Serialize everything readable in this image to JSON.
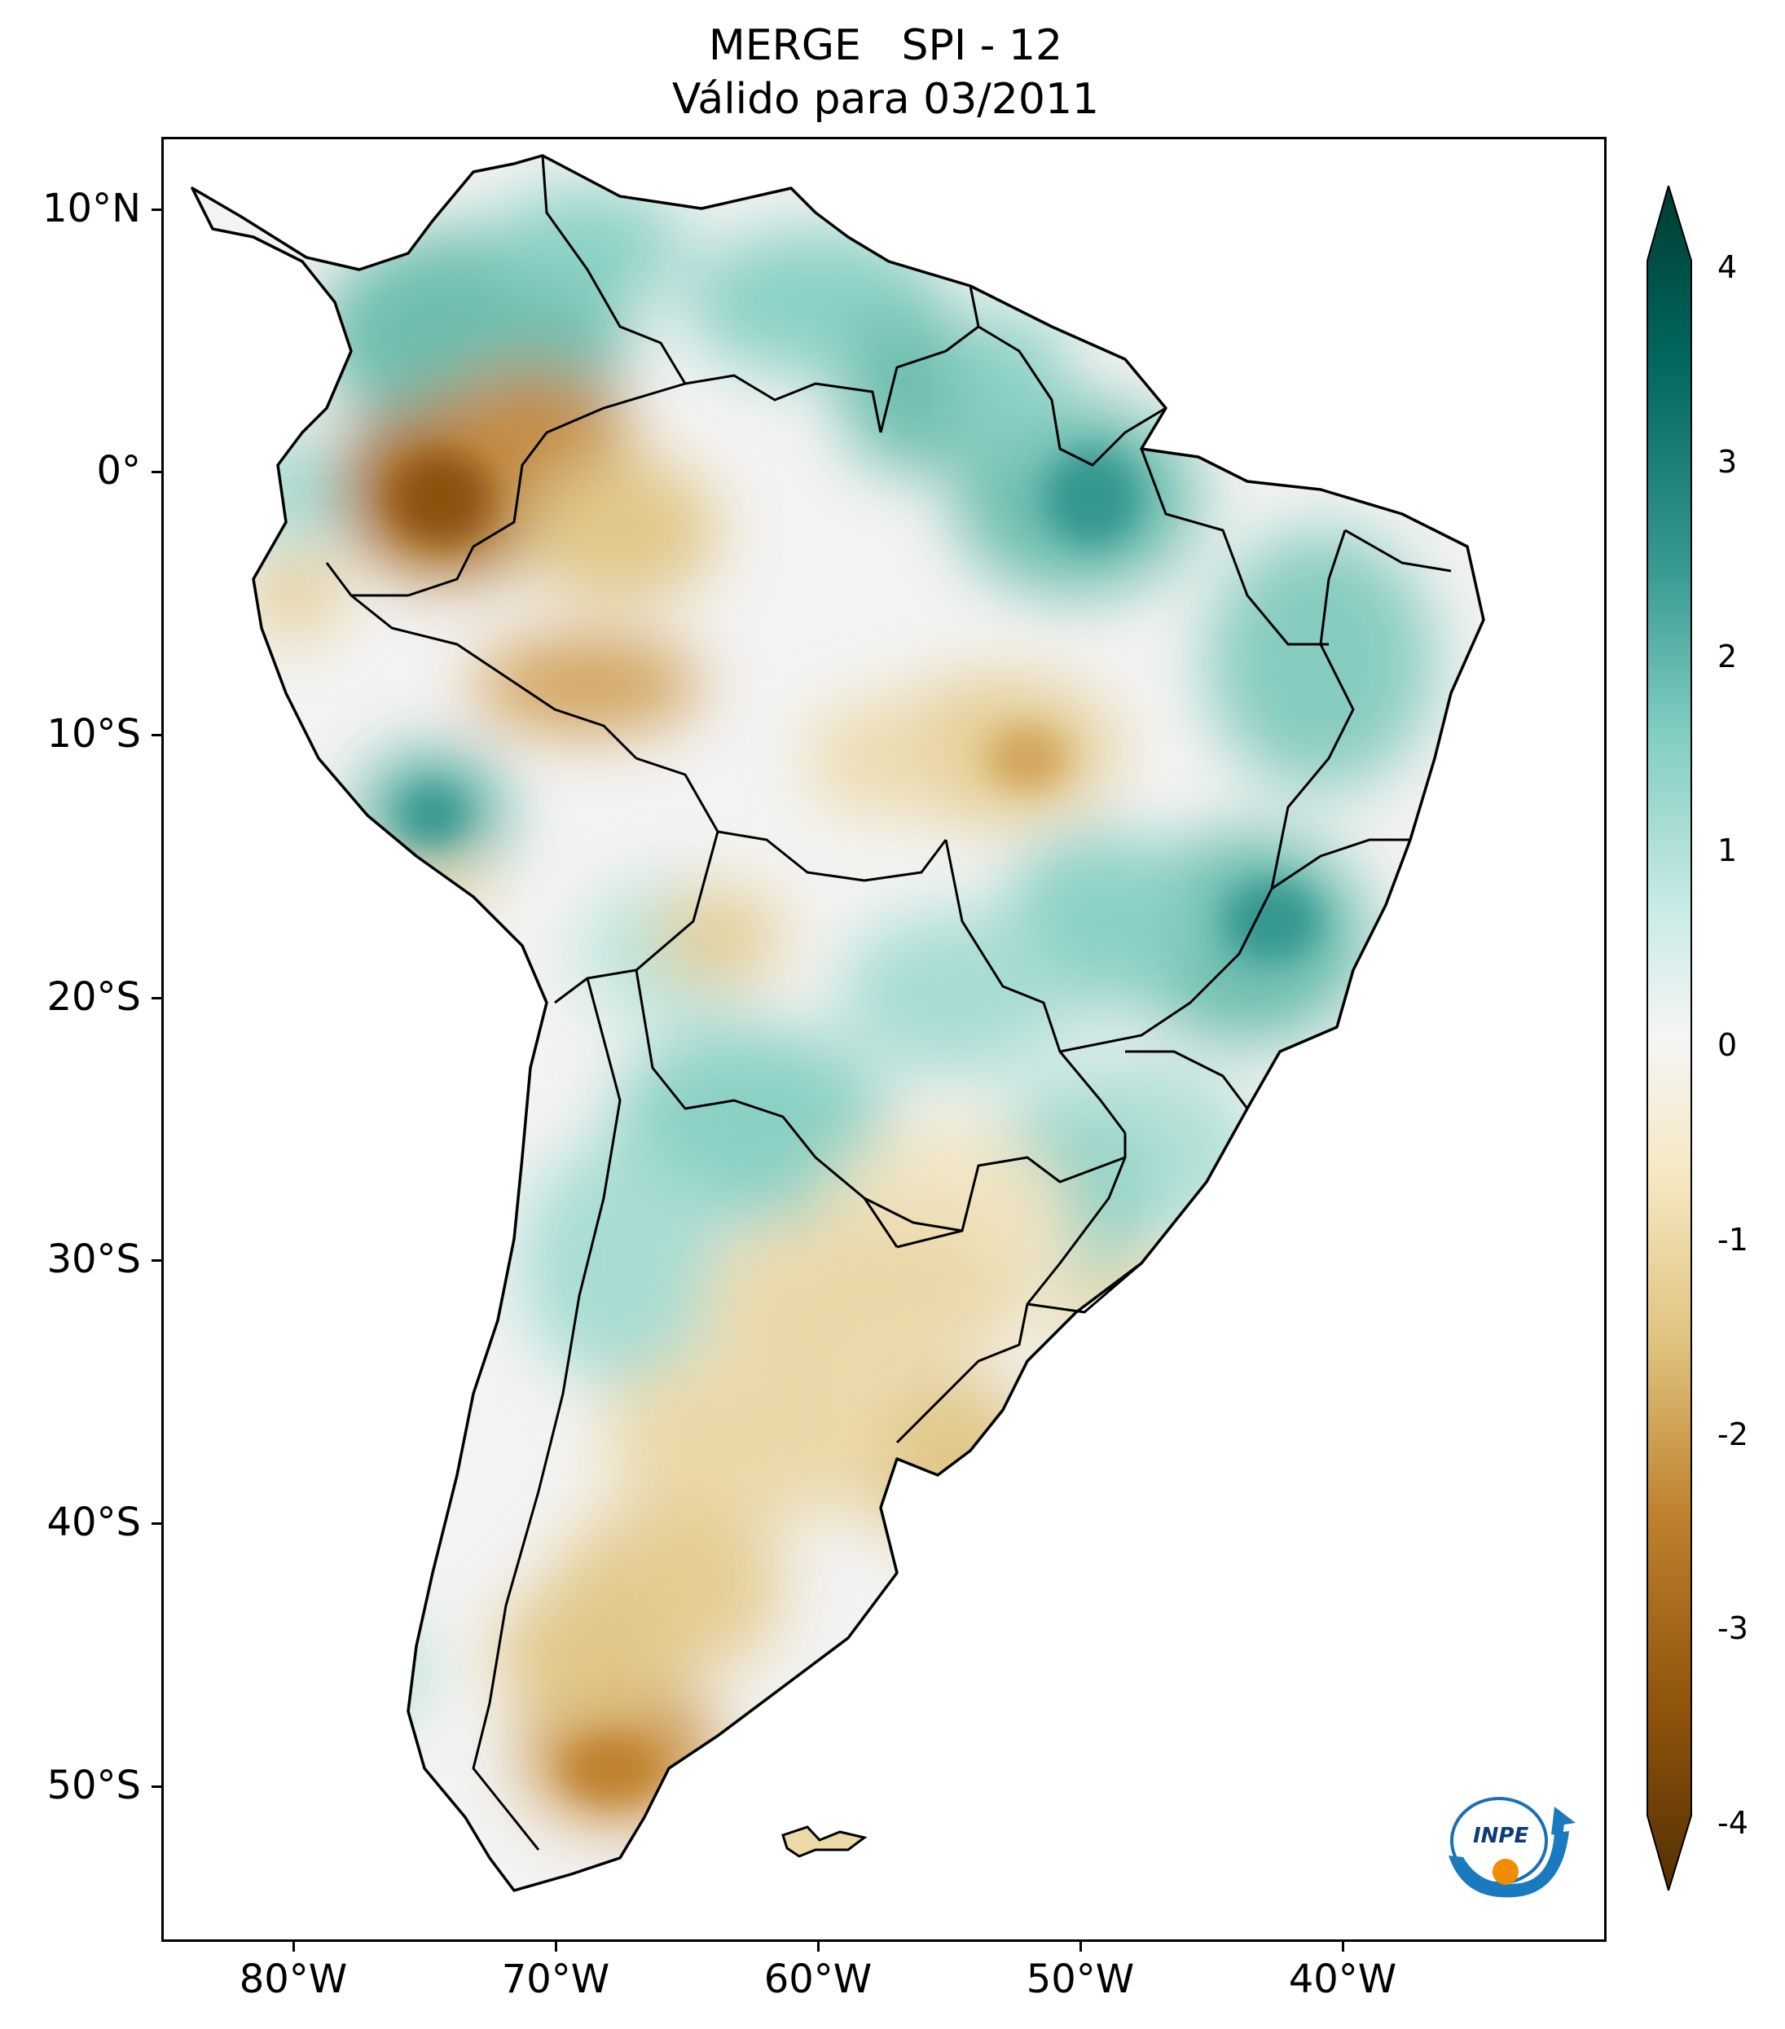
{
  "title": {
    "line1": "MERGE   SPI - 12",
    "line2": "Válido para 03/2011"
  },
  "map": {
    "region": "South America",
    "variable": "SPI - 12",
    "latitude_labels": [
      "10°N",
      "0°",
      "10°S",
      "20°S",
      "30°S",
      "40°S",
      "50°S"
    ],
    "longitude_labels": [
      "80°W",
      "70°W",
      "60°W",
      "50°W",
      "40°W"
    ],
    "lat_range": [
      -56,
      12.5
    ],
    "lon_range": [
      -85,
      -30
    ]
  },
  "colorbar": {
    "ticks": [
      "4",
      "3",
      "2",
      "1",
      "0",
      "-1",
      "-2",
      "-3",
      "-4"
    ],
    "range": [
      -4,
      4
    ],
    "extend": "both",
    "colors": {
      "dry_extreme": "#543005",
      "dry_strong": "#8c510a",
      "dry_moderate": "#bf812d",
      "dry_mild": "#dfc27d",
      "dry_light": "#f6e8c3",
      "neutral": "#f5f5f5",
      "wet_light": "#c7eae5",
      "wet_mild": "#80cdc1",
      "wet_moderate": "#35978f",
      "wet_strong": "#01665e",
      "wet_extreme": "#003c30"
    }
  },
  "logo": {
    "text": "INPE"
  }
}
